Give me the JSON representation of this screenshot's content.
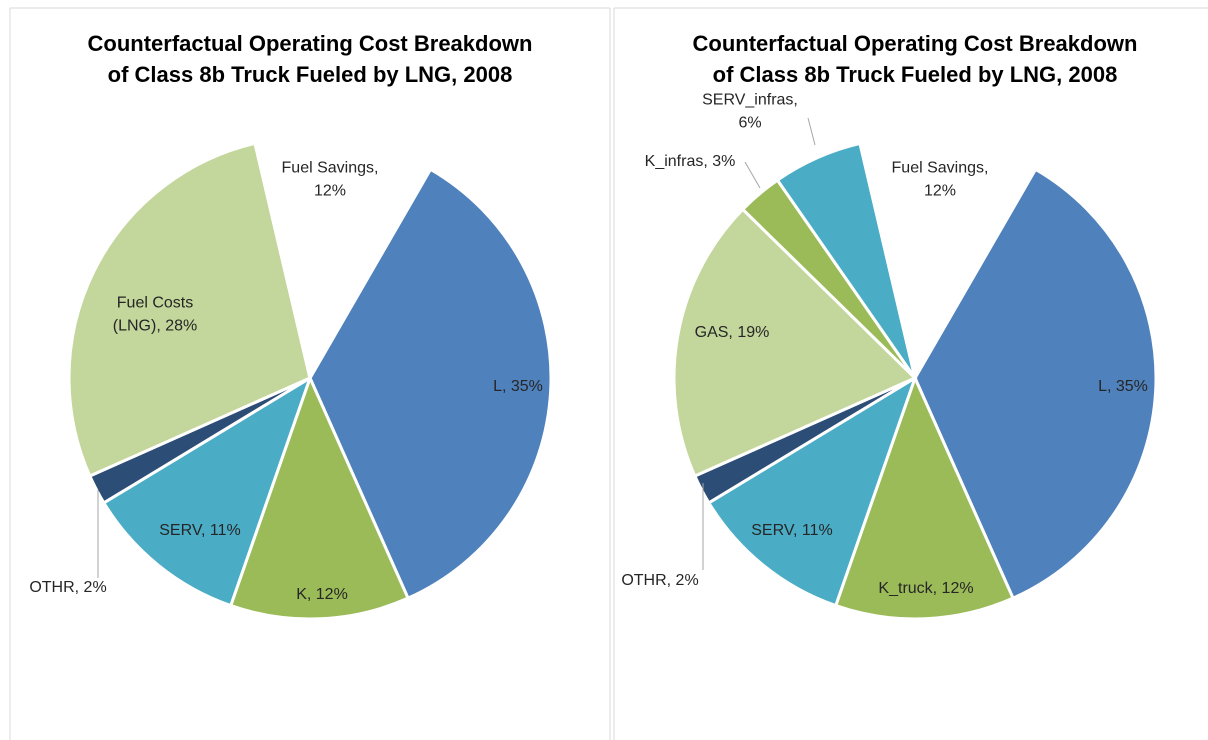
{
  "chart_data": [
    {
      "type": "pie",
      "title": [
        "Counterfactual Operating Cost Breakdown",
        "of Class 8b Truck Fueled by LNG, 2008"
      ],
      "categories": [
        "L",
        "K",
        "SERV",
        "OTHR",
        "Fuel Costs (LNG)",
        "Fuel Savings"
      ],
      "values": [
        35,
        12,
        11,
        2,
        28,
        12
      ],
      "labels": [
        [
          "L, 35%"
        ],
        [
          "K, 12%"
        ],
        [
          "SERV, 11%"
        ],
        [
          "OTHR, 2%"
        ],
        [
          "Fuel Costs",
          "(LNG), 28%"
        ],
        [
          "Fuel Savings,",
          "12%"
        ]
      ],
      "colors": [
        "#4f81bd",
        "#9bbb59",
        "#4bacc6",
        "#2c4d75",
        "#c3d69b",
        "#ffffff"
      ]
    },
    {
      "type": "pie",
      "title": [
        "Counterfactual Operating Cost Breakdown",
        "of Class 8b Truck Fueled by LNG, 2008"
      ],
      "categories": [
        "L",
        "K_truck",
        "SERV",
        "OTHR",
        "GAS",
        "K_infras",
        "SERV_infras",
        "Fuel Savings"
      ],
      "values": [
        35,
        12,
        11,
        2,
        19,
        3,
        6,
        12
      ],
      "labels": [
        [
          "L, 35%"
        ],
        [
          "K_truck, 12%"
        ],
        [
          "SERV, 11%"
        ],
        [
          "OTHR, 2%"
        ],
        [
          "GAS, 19%"
        ],
        [
          "K_infras, 3%"
        ],
        [
          "SERV_infras,",
          "6%"
        ],
        [
          "Fuel Savings,",
          "12%"
        ]
      ],
      "colors": [
        "#4f81bd",
        "#9bbb59",
        "#4bacc6",
        "#2c4d75",
        "#c3d69b",
        "#9bbb59",
        "#4bacc6",
        "#ffffff"
      ]
    }
  ]
}
